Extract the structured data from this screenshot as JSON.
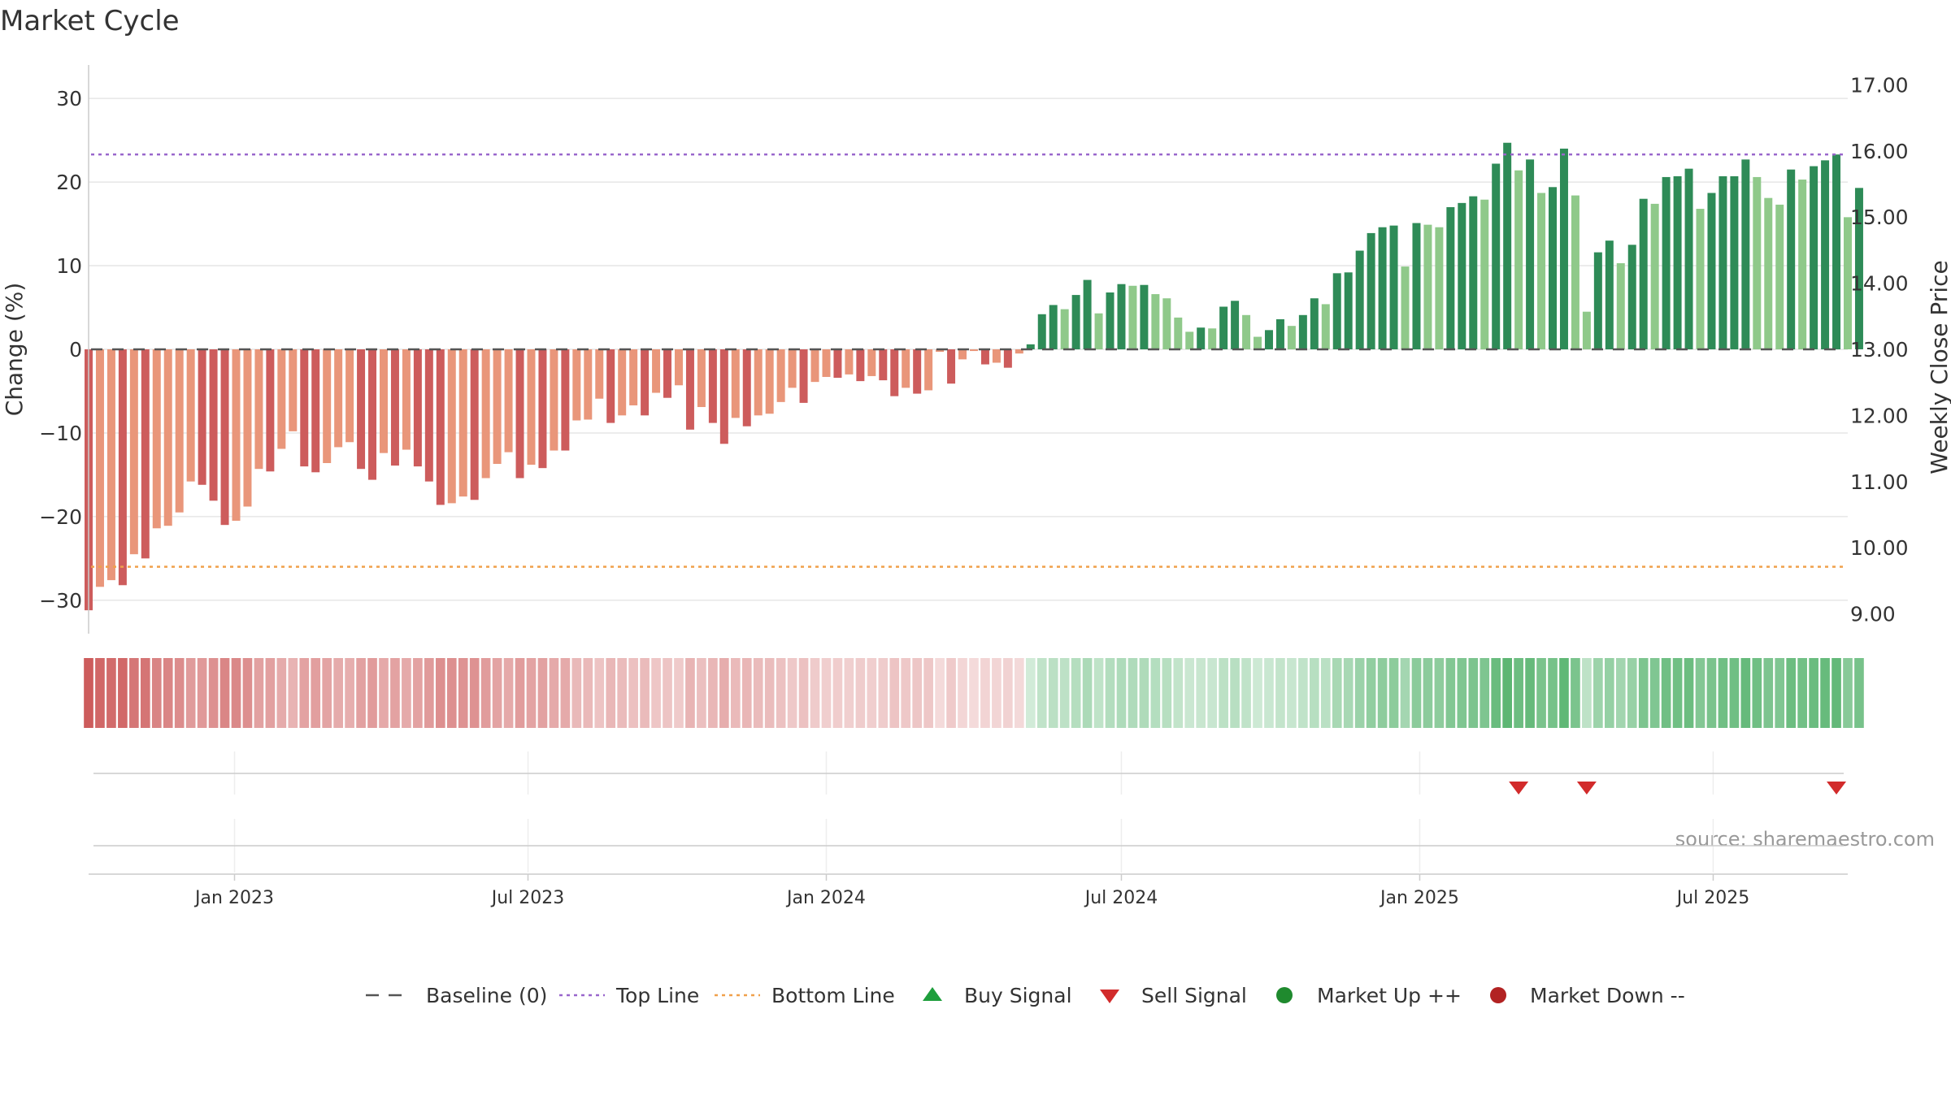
{
  "chart_data": {
    "type": "bar",
    "title": "Market Cycle",
    "source": "source: sharemaestro.com",
    "ylabel": "Change (%)",
    "y2label": "Weekly Close Price",
    "ylim": [
      -34,
      34
    ],
    "yticks": [
      -30,
      -20,
      -10,
      0,
      10,
      20,
      30
    ],
    "y2lim": [
      8.7,
      17.3
    ],
    "y2ticks": [
      "9.00",
      "10.00",
      "11.00",
      "12.00",
      "13.00",
      "14.00",
      "15.00",
      "16.00",
      "17.00"
    ],
    "x_start": "2022-10-03",
    "x_end": "2025-09-22",
    "x_ticks": [
      {
        "date": "2023-01-01",
        "label": "Jan 2023"
      },
      {
        "date": "2023-07-01",
        "label": "Jul 2023"
      },
      {
        "date": "2024-01-01",
        "label": "Jan 2024"
      },
      {
        "date": "2024-07-01",
        "label": "Jul 2024"
      },
      {
        "date": "2025-01-01",
        "label": "Jan 2025"
      },
      {
        "date": "2025-07-01",
        "label": "Jul 2025"
      }
    ],
    "first_week": "2022-10-03",
    "top_line": 23.3,
    "bottom_line": -26,
    "baseline": 0,
    "values": [
      -31.2,
      -28.4,
      -27.6,
      -28.2,
      -24.5,
      -25,
      -21.4,
      -21.1,
      -19.5,
      -15.8,
      -16.2,
      -18.1,
      -21,
      -20.5,
      -18.8,
      -14.3,
      -14.6,
      -11.9,
      -9.8,
      -14,
      -14.7,
      -13.6,
      -11.7,
      -11.1,
      -14.3,
      -15.6,
      -12.4,
      -13.9,
      -12,
      -14,
      -15.8,
      -18.6,
      -18.4,
      -17.6,
      -18,
      -15.4,
      -13.7,
      -12.3,
      -15.4,
      -13.8,
      -14.2,
      -12.1,
      -12.1,
      -8.5,
      -8.4,
      -5.9,
      -8.8,
      -7.9,
      -6.7,
      -7.9,
      -5.2,
      -5.8,
      -4.3,
      -9.6,
      -6.9,
      -8.8,
      -11.3,
      -8.2,
      -9.2,
      -7.9,
      -7.7,
      -6.3,
      -4.6,
      -6.4,
      -3.9,
      -3.3,
      -3.4,
      -3,
      -3.8,
      -3.2,
      -3.7,
      -5.6,
      -4.6,
      -5.3,
      -4.9,
      -0.3,
      -4.1,
      -1.2,
      -0.2,
      -1.8,
      -1.6,
      -2.2,
      -0.5,
      0.6,
      4.2,
      5.3,
      4.8,
      6.5,
      8.3,
      4.3,
      6.8,
      7.8,
      7.6,
      7.7,
      6.6,
      6.1,
      3.8,
      2.1,
      2.6,
      2.5,
      5.1,
      5.8,
      4.1,
      1.5,
      2.3,
      3.6,
      2.8,
      4.1,
      6.1,
      5.4,
      9.1,
      9.2,
      11.8,
      13.9,
      14.6,
      14.8,
      9.9,
      15.1,
      14.9,
      14.6,
      17,
      17.5,
      18.3,
      17.9,
      22.2,
      24.7,
      21.4,
      22.7,
      18.7,
      19.4,
      24,
      18.4,
      4.5,
      11.6,
      13,
      10.3,
      12.5,
      18,
      17.4,
      20.6,
      20.7,
      21.6,
      16.8,
      18.7,
      20.7,
      20.7,
      22.7,
      20.6,
      18.1,
      17.3,
      21.5,
      20.3,
      21.9,
      22.6,
      23.3,
      15.8,
      19.3
    ],
    "heat_strip": "weekly strength shading, red (down) to green (up)",
    "sell_signals": [
      "2025-03-03",
      "2025-04-14",
      "2025-09-15"
    ],
    "buy_signals": [],
    "colors": {
      "down_dark": "#cd5c5c",
      "down_light": "#e9967a",
      "up_dark": "#2e8b57",
      "up_light": "#8fc98a",
      "top_line": "#9966cc",
      "bottom_line": "#f0a04b",
      "baseline": "#555555",
      "buy": "#1e9e3c",
      "sell": "#d22b2b",
      "market_up": "#1f8a2e",
      "market_down": "#b22222"
    },
    "legend_position": "bottom-center",
    "legend": [
      {
        "label": "Baseline (0)",
        "marker": "dash-line",
        "color": "#555555"
      },
      {
        "label": "Top Line",
        "marker": "dotted-line",
        "color": "#9966cc"
      },
      {
        "label": "Bottom Line",
        "marker": "dotted-line",
        "color": "#f0a04b"
      },
      {
        "label": "Buy Signal",
        "marker": "triangle-up",
        "color": "#1e9e3c"
      },
      {
        "label": "Sell Signal",
        "marker": "triangle-down",
        "color": "#d22b2b"
      },
      {
        "label": "Market Up ++",
        "marker": "circle",
        "color": "#1f8a2e"
      },
      {
        "label": "Market Down --",
        "marker": "circle",
        "color": "#b22222"
      }
    ]
  }
}
